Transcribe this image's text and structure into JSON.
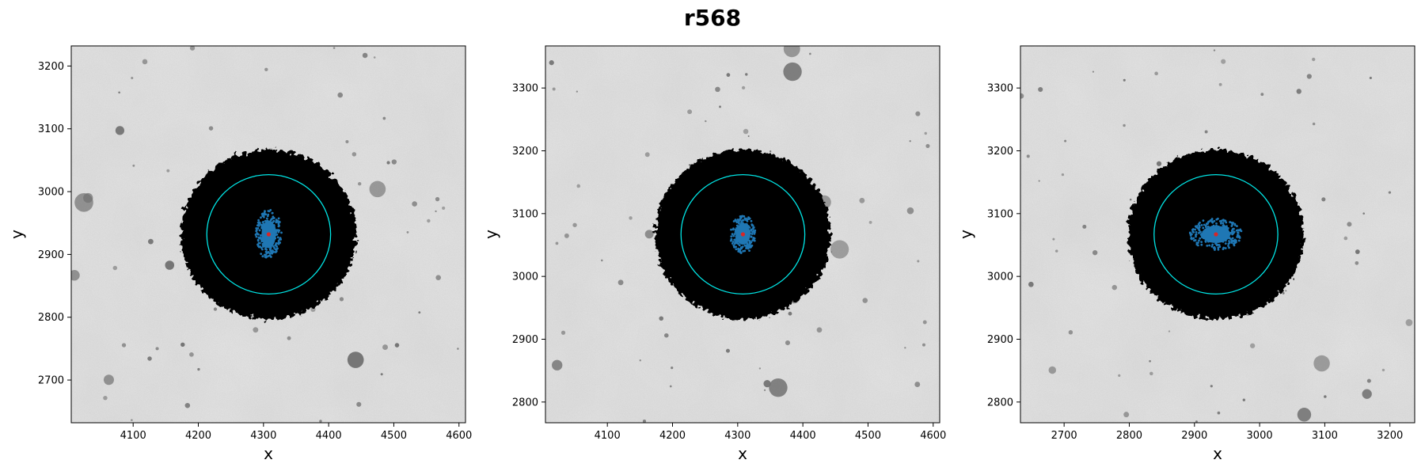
{
  "figure": {
    "title": "r568"
  },
  "chart_data": [
    {
      "type": "scatter",
      "panel": "left",
      "xlabel": "x",
      "ylabel": "y",
      "xlim": [
        4005,
        4610
      ],
      "ylim": [
        2632,
        3232
      ],
      "xticks": [
        4100,
        4200,
        4300,
        4400,
        4500,
        4600
      ],
      "yticks": [
        2700,
        2800,
        2900,
        3000,
        3100,
        3200
      ],
      "center": [
        4308,
        2932
      ],
      "circle_radius": 95,
      "halo_radius": 135,
      "core_extent": [
        20,
        40
      ],
      "colors": {
        "halo": "#000000",
        "circle": "#00e5e5",
        "core": "#1f77b4",
        "center": "#d62728",
        "background": "#c8c8c8"
      }
    },
    {
      "type": "scatter",
      "panel": "middle",
      "xlabel": "x",
      "ylabel": "y",
      "xlim": [
        4005,
        4610
      ],
      "ylim": [
        2767,
        3367
      ],
      "xticks": [
        4100,
        4200,
        4300,
        4400,
        4500,
        4600
      ],
      "yticks": [
        2800,
        2900,
        3000,
        3100,
        3200,
        3300
      ],
      "center": [
        4308,
        3067
      ],
      "circle_radius": 95,
      "halo_radius": 135,
      "core_extent": [
        20,
        30
      ],
      "colors": {
        "halo": "#000000",
        "circle": "#00e5e5",
        "core": "#1f77b4",
        "center": "#d62728",
        "background": "#d2d2d2"
      }
    },
    {
      "type": "scatter",
      "panel": "right",
      "xlabel": "x",
      "ylabel": "y",
      "xlim": [
        2633,
        3238
      ],
      "ylim": [
        2767,
        3367
      ],
      "xticks": [
        2700,
        2800,
        2900,
        3000,
        3100,
        3200
      ],
      "yticks": [
        2800,
        2900,
        3000,
        3100,
        3200,
        3300
      ],
      "center": [
        2933,
        3067
      ],
      "circle_radius": 95,
      "halo_radius": 135,
      "core_extent": [
        40,
        25
      ],
      "colors": {
        "halo": "#000000",
        "circle": "#00e5e5",
        "core": "#1f77b4",
        "center": "#d62728",
        "background": "#c8c8c8"
      }
    }
  ]
}
